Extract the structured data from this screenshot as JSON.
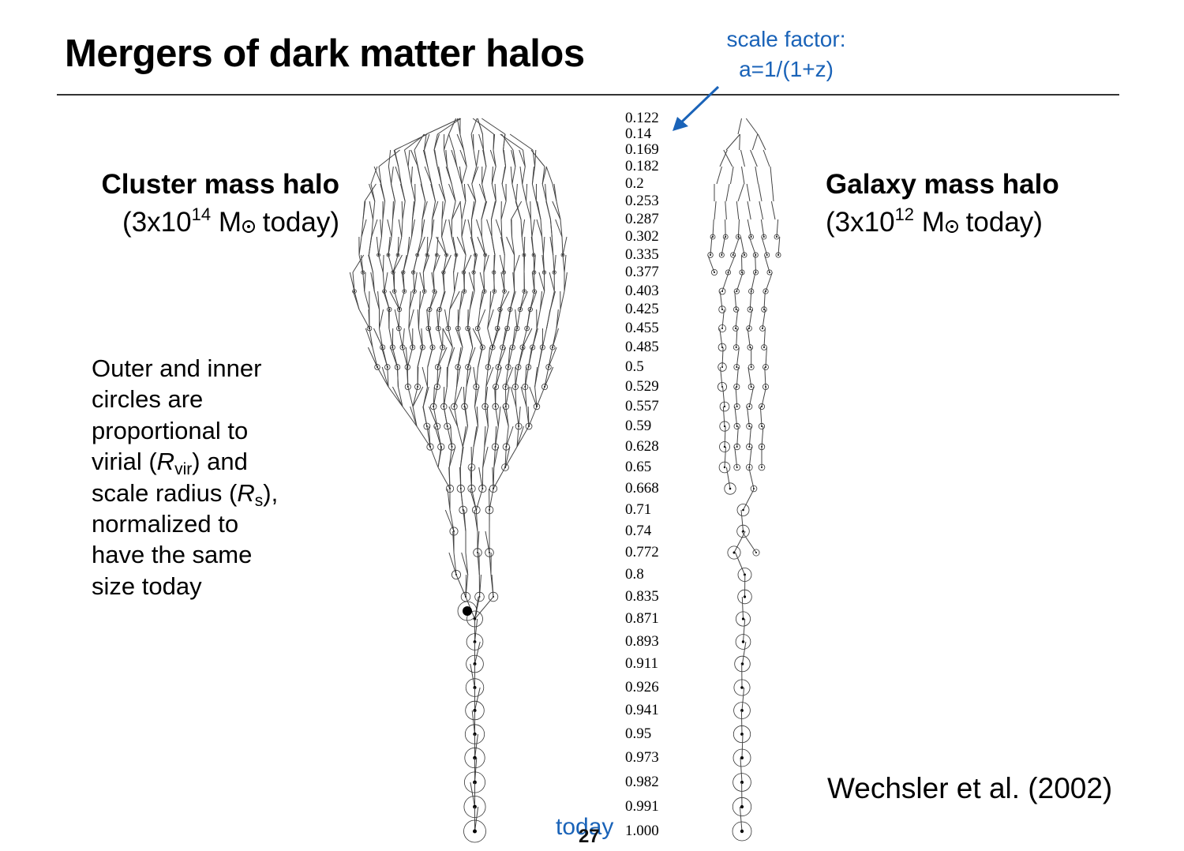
{
  "slide": {
    "title": "Mergers of dark matter halos",
    "page_number": "27"
  },
  "callout": {
    "line1": "scale factor:",
    "line2": "a=1/(1+z)",
    "color": "#1a63b8"
  },
  "cluster": {
    "title": "Cluster mass halo",
    "mass_prefix": "(3x10",
    "mass_exponent": "14",
    "mass_unit": "M",
    "mass_suffix": "today)"
  },
  "galaxy": {
    "title": "Galaxy mass halo",
    "mass_prefix": "(3x10",
    "mass_exponent": "12",
    "mass_unit": "M",
    "mass_suffix": "today)"
  },
  "description": {
    "line1": "Outer and inner",
    "line2": "circles are",
    "line3": "proportional to",
    "line4_pre": "virial (",
    "line4_sym": "R",
    "line4_sub": "vir",
    "line4_post": ") and",
    "line5_pre": "scale radius (",
    "line5_sym": "R",
    "line5_sub": "s",
    "line5_post": "),",
    "line6": "normalized to",
    "line7": "have the same",
    "line8": "size today"
  },
  "scale_factors": [
    "0.122",
    "0.14",
    "0.169",
    "0.182",
    "0.2",
    "0.253",
    "0.287",
    "0.302",
    "0.335",
    "0.377",
    "0.403",
    "0.425",
    "0.455",
    "0.485",
    "0.5",
    "0.529",
    "0.557",
    "0.59",
    "0.628",
    "0.65",
    "0.668",
    "0.71",
    "0.74",
    "0.772",
    "0.8",
    "0.835",
    "0.871",
    "0.893",
    "0.911",
    "0.926",
    "0.941",
    "0.95",
    "0.973",
    "0.982",
    "0.991",
    "1.000"
  ],
  "today_label": "today",
  "credit": "Wechsler et al. (2002)"
}
